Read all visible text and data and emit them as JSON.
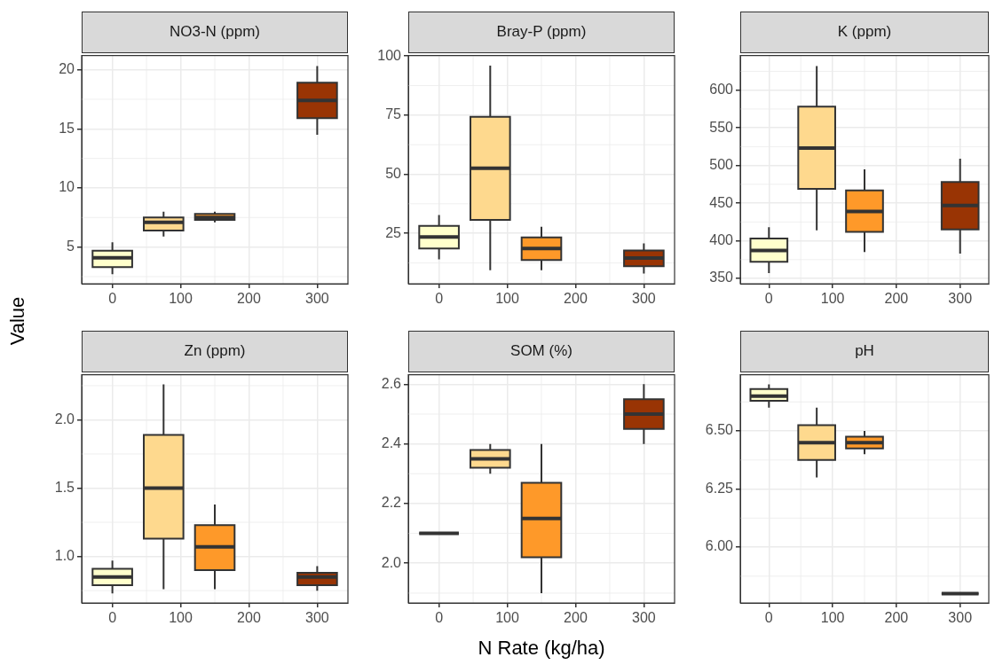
{
  "chart_data": [
    {
      "type": "box",
      "title": "NO3-N (ppm)",
      "ylabel": "Value",
      "x": [
        0,
        75,
        150,
        300
      ],
      "colors": [
        "#ffffcc",
        "#fed98e",
        "#fe9929",
        "#993404"
      ],
      "xlim": [
        -45,
        345
      ],
      "xticks": [
        0,
        100,
        200,
        300
      ],
      "ylim": [
        1.9,
        21.2
      ],
      "yticks": [
        5,
        10,
        15,
        20
      ],
      "grid": true,
      "boxes": [
        {
          "low": 2.7,
          "q1": 3.3,
          "median": 4.1,
          "q3": 4.7,
          "high": 5.4
        },
        {
          "low": 5.9,
          "q1": 6.4,
          "median": 7.1,
          "q3": 7.5,
          "high": 8.0
        },
        {
          "low": 7.1,
          "q1": 7.3,
          "median": 7.5,
          "q3": 7.8,
          "high": 8.0
        },
        {
          "low": 14.5,
          "q1": 15.9,
          "median": 17.4,
          "q3": 18.9,
          "high": 20.3
        }
      ]
    },
    {
      "type": "box",
      "title": "Bray-P (ppm)",
      "x": [
        0,
        75,
        150,
        300
      ],
      "colors": [
        "#ffffcc",
        "#fed98e",
        "#fe9929",
        "#993404"
      ],
      "xlim": [
        -45,
        345
      ],
      "xticks": [
        0,
        100,
        200,
        300
      ],
      "ylim": [
        3.7,
        100.2
      ],
      "yticks": [
        25,
        50,
        75,
        100
      ],
      "grid": true,
      "boxes": [
        {
          "low": 14,
          "q1": 18.6,
          "median": 23.5,
          "q3": 28.2,
          "high": 32.8
        },
        {
          "low": 9.4,
          "q1": 30.7,
          "median": 52.5,
          "q3": 74.3,
          "high": 95.9
        },
        {
          "low": 9.4,
          "q1": 13.7,
          "median": 18.6,
          "q3": 23.3,
          "high": 27.8
        },
        {
          "low": 8,
          "q1": 11.1,
          "median": 14.6,
          "q3": 17.8,
          "high": 20.8
        }
      ]
    },
    {
      "type": "box",
      "title": "K (ppm)",
      "x": [
        0,
        75,
        150,
        300
      ],
      "colors": [
        "#ffffcc",
        "#fed98e",
        "#fe9929",
        "#993404"
      ],
      "xlim": [
        -45,
        345
      ],
      "xticks": [
        0,
        100,
        200,
        300
      ],
      "ylim": [
        343,
        646
      ],
      "yticks": [
        350,
        400,
        450,
        500,
        550,
        600
      ],
      "grid": true,
      "boxes": [
        {
          "low": 357,
          "q1": 372,
          "median": 387,
          "q3": 403,
          "high": 418
        },
        {
          "low": 414,
          "q1": 469,
          "median": 523,
          "q3": 578,
          "high": 632
        },
        {
          "low": 385,
          "q1": 412,
          "median": 439,
          "q3": 467,
          "high": 495
        },
        {
          "low": 383,
          "q1": 415,
          "median": 447,
          "q3": 478,
          "high": 509
        }
      ]
    },
    {
      "type": "box",
      "title": "Zn (ppm)",
      "x": [
        0,
        75,
        150,
        300
      ],
      "colors": [
        "#ffffcc",
        "#fed98e",
        "#fe9929",
        "#993404"
      ],
      "xlim": [
        -45,
        345
      ],
      "xticks": [
        0,
        100,
        200,
        300
      ],
      "ylim": [
        0.66,
        2.33
      ],
      "yticks": [
        {
          "value": 1,
          "label": "1.0"
        },
        1.5,
        {
          "value": 2,
          "label": "2.0"
        }
      ],
      "grid": true,
      "boxes": [
        {
          "low": 0.73,
          "q1": 0.79,
          "median": 0.85,
          "q3": 0.91,
          "high": 0.97
        },
        {
          "low": 0.76,
          "q1": 1.13,
          "median": 1.5,
          "q3": 1.89,
          "high": 2.26
        },
        {
          "low": 0.76,
          "q1": 0.9,
          "median": 1.07,
          "q3": 1.23,
          "high": 1.38
        },
        {
          "low": 0.75,
          "q1": 0.79,
          "median": 0.85,
          "q3": 0.88,
          "high": 0.93
        }
      ]
    },
    {
      "type": "box",
      "title": "SOM (%)",
      "xlabel": "N Rate (kg/ha)",
      "x": [
        0,
        75,
        150,
        300
      ],
      "colors": [
        "#333333",
        "#fed98e",
        "#fe9929",
        "#993404"
      ],
      "xlim": [
        -45,
        345
      ],
      "xticks": [
        0,
        100,
        200,
        300
      ],
      "ylim": [
        1.867,
        2.632
      ],
      "yticks": [
        {
          "value": 2,
          "label": "2.0"
        },
        2.2,
        2.4,
        2.6
      ],
      "grid": true,
      "boxes": [
        {
          "low": 2.1,
          "q1": 2.1,
          "median": 2.1,
          "q3": 2.1,
          "high": 2.1
        },
        {
          "low": 2.3,
          "q1": 2.32,
          "median": 2.35,
          "q3": 2.38,
          "high": 2.4
        },
        {
          "low": 1.9,
          "q1": 2.02,
          "median": 2.15,
          "q3": 2.27,
          "high": 2.4
        },
        {
          "low": 2.4,
          "q1": 2.45,
          "median": 2.5,
          "q3": 2.55,
          "high": 2.6
        }
      ]
    },
    {
      "type": "box",
      "title": "pH",
      "x": [
        0,
        75,
        150,
        300
      ],
      "colors": [
        "#ffffcc",
        "#fed98e",
        "#fe9929",
        "#333333"
      ],
      "xlim": [
        -45,
        345
      ],
      "xticks": [
        0,
        100,
        200,
        300
      ],
      "ylim": [
        5.76,
        6.742
      ],
      "yticks": [
        {
          "value": 6,
          "label": "6.00"
        },
        {
          "value": 6.25,
          "label": "6.25"
        },
        {
          "value": 6.5,
          "label": "6.50"
        }
      ],
      "grid": true,
      "boxes": [
        {
          "low": 6.6,
          "q1": 6.63,
          "median": 6.65,
          "q3": 6.68,
          "high": 6.7
        },
        {
          "low": 6.3,
          "q1": 6.375,
          "median": 6.45,
          "q3": 6.525,
          "high": 6.6
        },
        {
          "low": 6.4,
          "q1": 6.425,
          "median": 6.45,
          "q3": 6.475,
          "high": 6.5
        },
        {
          "low": 5.8,
          "q1": 5.8,
          "median": 5.8,
          "q3": 5.8,
          "high": 5.8
        }
      ]
    }
  ]
}
